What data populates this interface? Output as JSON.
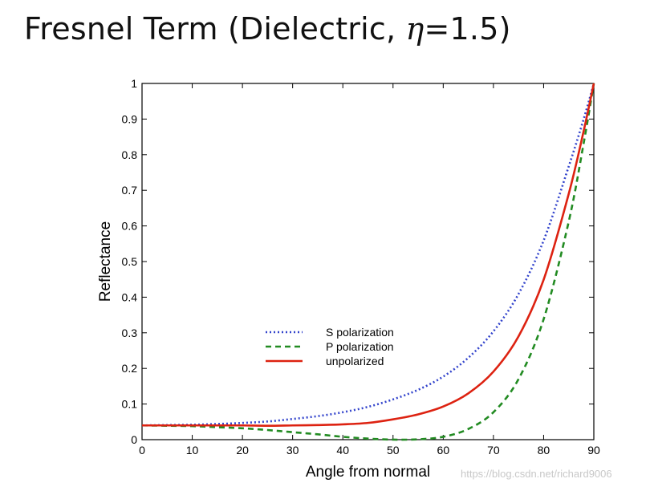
{
  "title": {
    "prefix": "Fresnel Term (Dielectric, ",
    "eta_symbol": "η",
    "suffix": "=1.5)"
  },
  "watermark": "https://blog.csdn.net/richard9006",
  "chart_data": {
    "type": "line",
    "xlabel": "Angle from normal",
    "ylabel": "Reflectance",
    "xlim": [
      0,
      90
    ],
    "ylim": [
      0,
      1
    ],
    "xticks": [
      0,
      10,
      20,
      30,
      40,
      50,
      60,
      70,
      80,
      90
    ],
    "yticks": [
      0,
      0.1,
      0.2,
      0.3,
      0.4,
      0.5,
      0.6,
      0.7,
      0.8,
      0.9,
      1
    ],
    "ytick_labels": [
      "0",
      "0.1",
      "0.2",
      "0.3",
      "0.4",
      "0.5",
      "0.6",
      "0.7",
      "0.8",
      "0.9",
      "1"
    ],
    "grid": false,
    "legend_position": "center",
    "x": [
      0,
      5,
      10,
      15,
      20,
      25,
      30,
      35,
      40,
      45,
      50,
      55,
      60,
      65,
      70,
      75,
      80,
      85,
      88,
      90
    ],
    "series": [
      {
        "name": "S polarization",
        "color": "#3344cc",
        "style": "dotted",
        "values": [
          0.04,
          0.041,
          0.042,
          0.044,
          0.047,
          0.051,
          0.058,
          0.066,
          0.077,
          0.092,
          0.113,
          0.14,
          0.177,
          0.23,
          0.304,
          0.409,
          0.559,
          0.767,
          0.901,
          1.0
        ]
      },
      {
        "name": "P polarization",
        "color": "#228b22",
        "style": "dashed",
        "values": [
          0.04,
          0.039,
          0.038,
          0.035,
          0.032,
          0.027,
          0.021,
          0.015,
          0.008,
          0.003,
          0.0001,
          0.001,
          0.008,
          0.03,
          0.077,
          0.17,
          0.338,
          0.612,
          0.834,
          1.0
        ]
      },
      {
        "name": "unpolarized",
        "color": "#dd2211",
        "style": "solid",
        "values": [
          0.04,
          0.04,
          0.04,
          0.04,
          0.04,
          0.039,
          0.04,
          0.041,
          0.043,
          0.047,
          0.057,
          0.071,
          0.093,
          0.13,
          0.191,
          0.29,
          0.449,
          0.69,
          0.868,
          1.0
        ]
      }
    ]
  }
}
